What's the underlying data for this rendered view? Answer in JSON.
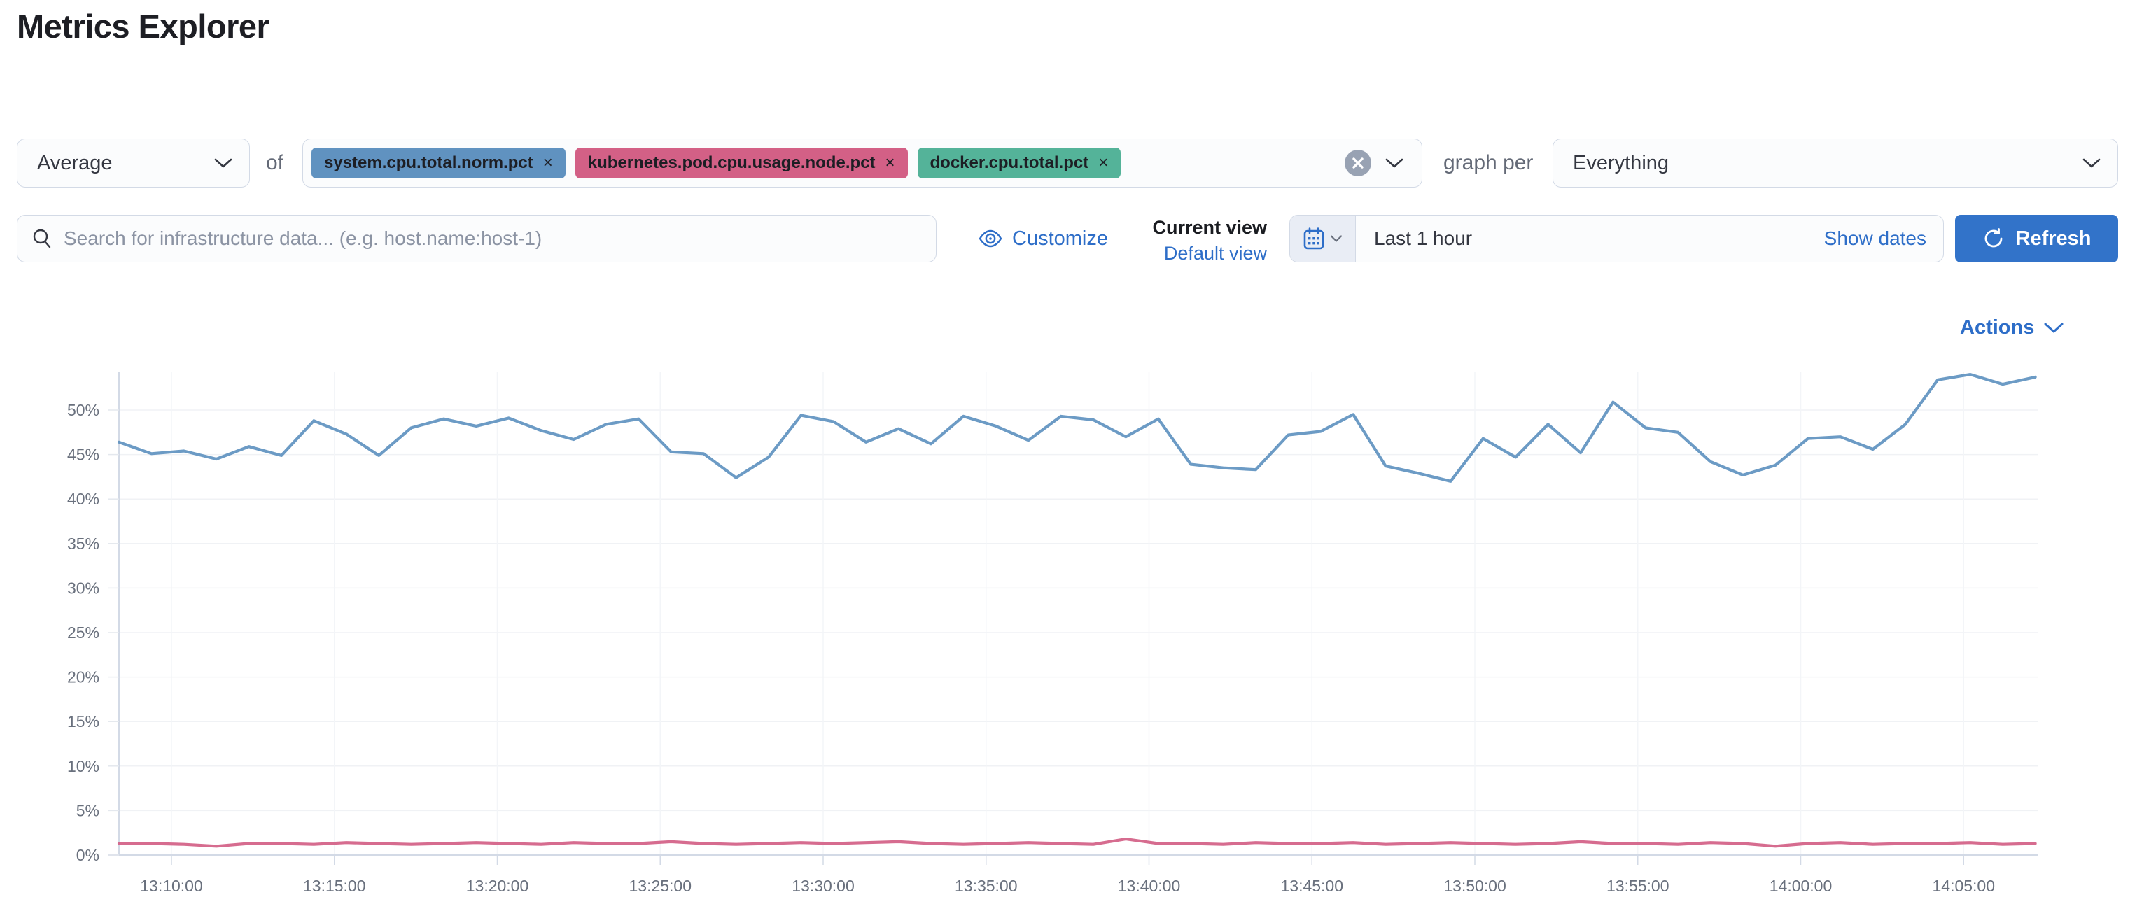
{
  "page": {
    "title": "Metrics Explorer"
  },
  "theme": {
    "link_color": "#2E6EC8",
    "primary_button_color": "#3273C9",
    "border_color": "#D3DAE6"
  },
  "toolbar": {
    "aggregation": {
      "value": "Average"
    },
    "of_label": "of",
    "metrics": [
      {
        "label": "system.cpu.total.norm.pct",
        "remove_label": "×",
        "color": "#6092C0"
      },
      {
        "label": "kubernetes.pod.cpu.usage.node.pct",
        "remove_label": "×",
        "color": "#D36086"
      },
      {
        "label": "docker.cpu.total.pct",
        "remove_label": "×",
        "color": "#54B399"
      }
    ],
    "graph_per_label": "graph per",
    "graph_per": {
      "value": "Everything"
    }
  },
  "searchbar": {
    "placeholder": "Search for infrastructure data... (e.g. host.name:host-1)",
    "value": "",
    "customize_label": "Customize",
    "current_view_label": "Current view",
    "view_name": "Default view",
    "time_range": "Last 1 hour",
    "show_dates_label": "Show dates",
    "refresh_label": "Refresh"
  },
  "chart": {
    "actions_label": "Actions"
  },
  "chart_data": {
    "type": "line",
    "title": "",
    "xlabel": "",
    "ylabel": "",
    "x_start": "13:08:00",
    "x_interval_seconds": 60,
    "x_tick_labels": [
      "13:10:00",
      "13:15:00",
      "13:20:00",
      "13:25:00",
      "13:30:00",
      "13:35:00",
      "13:40:00",
      "13:45:00",
      "13:50:00",
      "13:55:00",
      "14:00:00",
      "14:05:00"
    ],
    "y_tick_labels": [
      "0%",
      "5%",
      "10%",
      "15%",
      "20%",
      "25%",
      "30%",
      "35%",
      "40%",
      "45%",
      "50%"
    ],
    "ylim": [
      0,
      54
    ],
    "grid": true,
    "legend": "none",
    "series": [
      {
        "name": "system.cpu.total.norm.pct",
        "color": "#6092C0",
        "values": [
          46.4,
          45.1,
          45.4,
          44.5,
          45.9,
          44.9,
          48.8,
          47.3,
          44.9,
          48.0,
          49.0,
          48.2,
          49.1,
          47.7,
          46.7,
          48.4,
          49.0,
          45.3,
          45.1,
          42.4,
          44.7,
          49.4,
          48.7,
          46.4,
          47.9,
          46.2,
          49.3,
          48.2,
          46.6,
          49.3,
          48.9,
          47.0,
          49.0,
          43.9,
          43.5,
          43.3,
          47.2,
          47.6,
          49.5,
          43.7,
          42.9,
          42.0,
          46.8,
          44.7,
          48.4,
          45.2,
          50.9,
          48.0,
          47.5,
          44.2,
          42.7,
          43.8,
          46.8,
          47.0,
          45.6,
          48.4,
          53.4,
          54.0,
          52.9,
          53.7
        ]
      },
      {
        "name": "kubernetes.pod.cpu.usage.node.pct",
        "color": "#D36086",
        "values": [
          1.3,
          1.3,
          1.2,
          1.0,
          1.3,
          1.3,
          1.2,
          1.4,
          1.3,
          1.2,
          1.3,
          1.4,
          1.3,
          1.2,
          1.4,
          1.3,
          1.3,
          1.5,
          1.3,
          1.2,
          1.3,
          1.4,
          1.3,
          1.4,
          1.5,
          1.3,
          1.2,
          1.3,
          1.4,
          1.3,
          1.2,
          1.8,
          1.3,
          1.3,
          1.2,
          1.4,
          1.3,
          1.3,
          1.4,
          1.2,
          1.3,
          1.4,
          1.3,
          1.2,
          1.3,
          1.5,
          1.3,
          1.3,
          1.2,
          1.4,
          1.3,
          1.0,
          1.3,
          1.4,
          1.2,
          1.3,
          1.3,
          1.4,
          1.2,
          1.3
        ]
      }
    ]
  }
}
